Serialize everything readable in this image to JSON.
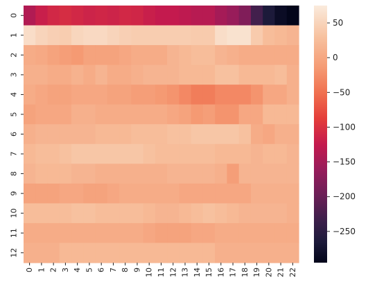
{
  "chart_data": {
    "type": "heatmap",
    "title": "",
    "xlabel": "",
    "ylabel": "",
    "x": [
      "0",
      "1",
      "2",
      "3",
      "4",
      "5",
      "6",
      "7",
      "8",
      "9",
      "10",
      "11",
      "12",
      "13",
      "14",
      "15",
      "16",
      "17",
      "18",
      "19",
      "20",
      "21",
      "22"
    ],
    "y": [
      "0",
      "1",
      "2",
      "3",
      "4",
      "5",
      "6",
      "7",
      "8",
      "9",
      "10",
      "11",
      "12"
    ],
    "colorbar": {
      "range": [
        -295,
        75
      ],
      "ticks": [
        50,
        0,
        -50,
        -100,
        -150,
        -200,
        -250
      ],
      "tick_labels": [
        "50",
        "0",
        "−50",
        "−100",
        "−150",
        "−200",
        "−250"
      ],
      "colormap": "rocket"
    },
    "values": [
      [
        -140,
        -120,
        -110,
        -105,
        -110,
        -115,
        -112,
        -115,
        -110,
        -112,
        -120,
        -125,
        -125,
        -130,
        -135,
        -135,
        -150,
        -160,
        -180,
        -230,
        -265,
        -285,
        -295
      ],
      [
        60,
        50,
        45,
        42,
        52,
        55,
        55,
        50,
        45,
        42,
        42,
        42,
        42,
        42,
        40,
        40,
        60,
        65,
        65,
        40,
        25,
        20,
        15
      ],
      [
        5,
        2,
        -5,
        -10,
        -15,
        -5,
        -5,
        -5,
        0,
        5,
        5,
        5,
        15,
        20,
        25,
        25,
        15,
        10,
        5,
        5,
        5,
        5,
        5
      ],
      [
        10,
        10,
        5,
        5,
        12,
        5,
        15,
        5,
        5,
        10,
        15,
        15,
        15,
        20,
        20,
        20,
        30,
        30,
        20,
        20,
        20,
        25,
        10
      ],
      [
        5,
        0,
        -5,
        -5,
        0,
        0,
        0,
        -5,
        -5,
        -10,
        -10,
        -15,
        -20,
        -30,
        -40,
        -40,
        -30,
        -30,
        -30,
        -20,
        0,
        0,
        10
      ],
      [
        -5,
        0,
        0,
        0,
        10,
        10,
        5,
        5,
        5,
        5,
        5,
        5,
        0,
        -5,
        -15,
        -10,
        -20,
        -20,
        0,
        0,
        20,
        20,
        20
      ],
      [
        10,
        15,
        15,
        15,
        15,
        15,
        20,
        20,
        20,
        25,
        25,
        25,
        30,
        30,
        35,
        35,
        35,
        35,
        30,
        5,
        0,
        10,
        10
      ],
      [
        20,
        25,
        25,
        30,
        35,
        35,
        35,
        35,
        35,
        35,
        30,
        25,
        25,
        25,
        25,
        25,
        20,
        20,
        20,
        15,
        20,
        20,
        15
      ],
      [
        15,
        20,
        20,
        20,
        15,
        15,
        10,
        10,
        10,
        10,
        10,
        10,
        15,
        15,
        15,
        15,
        10,
        -10,
        15,
        15,
        15,
        15,
        15
      ],
      [
        -5,
        -5,
        -5,
        0,
        0,
        -5,
        -5,
        0,
        5,
        5,
        5,
        5,
        5,
        0,
        0,
        0,
        0,
        0,
        0,
        10,
        10,
        10,
        10
      ],
      [
        25,
        25,
        25,
        25,
        30,
        30,
        25,
        25,
        25,
        25,
        20,
        15,
        15,
        20,
        25,
        30,
        25,
        20,
        15,
        15,
        15,
        15,
        10
      ],
      [
        5,
        5,
        5,
        5,
        5,
        5,
        5,
        5,
        5,
        5,
        0,
        -5,
        -5,
        -5,
        0,
        0,
        5,
        5,
        5,
        5,
        5,
        5,
        5
      ],
      [
        10,
        10,
        10,
        20,
        20,
        20,
        20,
        20,
        20,
        20,
        20,
        20,
        20,
        20,
        20,
        20,
        10,
        10,
        10,
        10,
        10,
        10,
        10
      ]
    ]
  }
}
